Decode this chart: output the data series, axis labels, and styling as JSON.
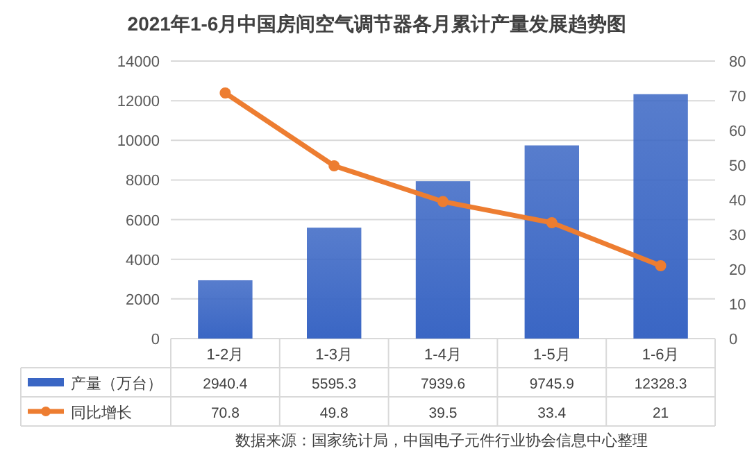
{
  "chart_data": {
    "type": "bar",
    "title": "2021年1-6月中国房间空气调节器各月累计产量发展趋势图",
    "categories": [
      "1-2月",
      "1-3月",
      "1-4月",
      "1-5月",
      "1-6月"
    ],
    "series": [
      {
        "name": "产量（万台）",
        "color": "#3a66c4",
        "values": [
          2940.4,
          5595.3,
          7939.6,
          9745.9,
          12328.3
        ]
      },
      {
        "name": "同比增长",
        "type": "line",
        "axis": "y2",
        "color": "#ed7d31",
        "marker": "circle",
        "values": [
          70.8,
          49.8,
          39.5,
          33.4,
          21
        ]
      }
    ],
    "ylim": [
      0,
      14000
    ],
    "yticks": [
      0,
      2000,
      4000,
      6000,
      8000,
      10000,
      12000,
      14000
    ],
    "y2lim": [
      0,
      80
    ],
    "y2ticks": [
      0,
      10,
      20,
      30,
      40,
      50,
      60,
      70,
      80
    ],
    "grid": "y",
    "legend": "bottom",
    "data_labels": true,
    "annotations": [
      "数据来源：国家统计局，中国电子元件行业协会信息中心整理"
    ]
  }
}
